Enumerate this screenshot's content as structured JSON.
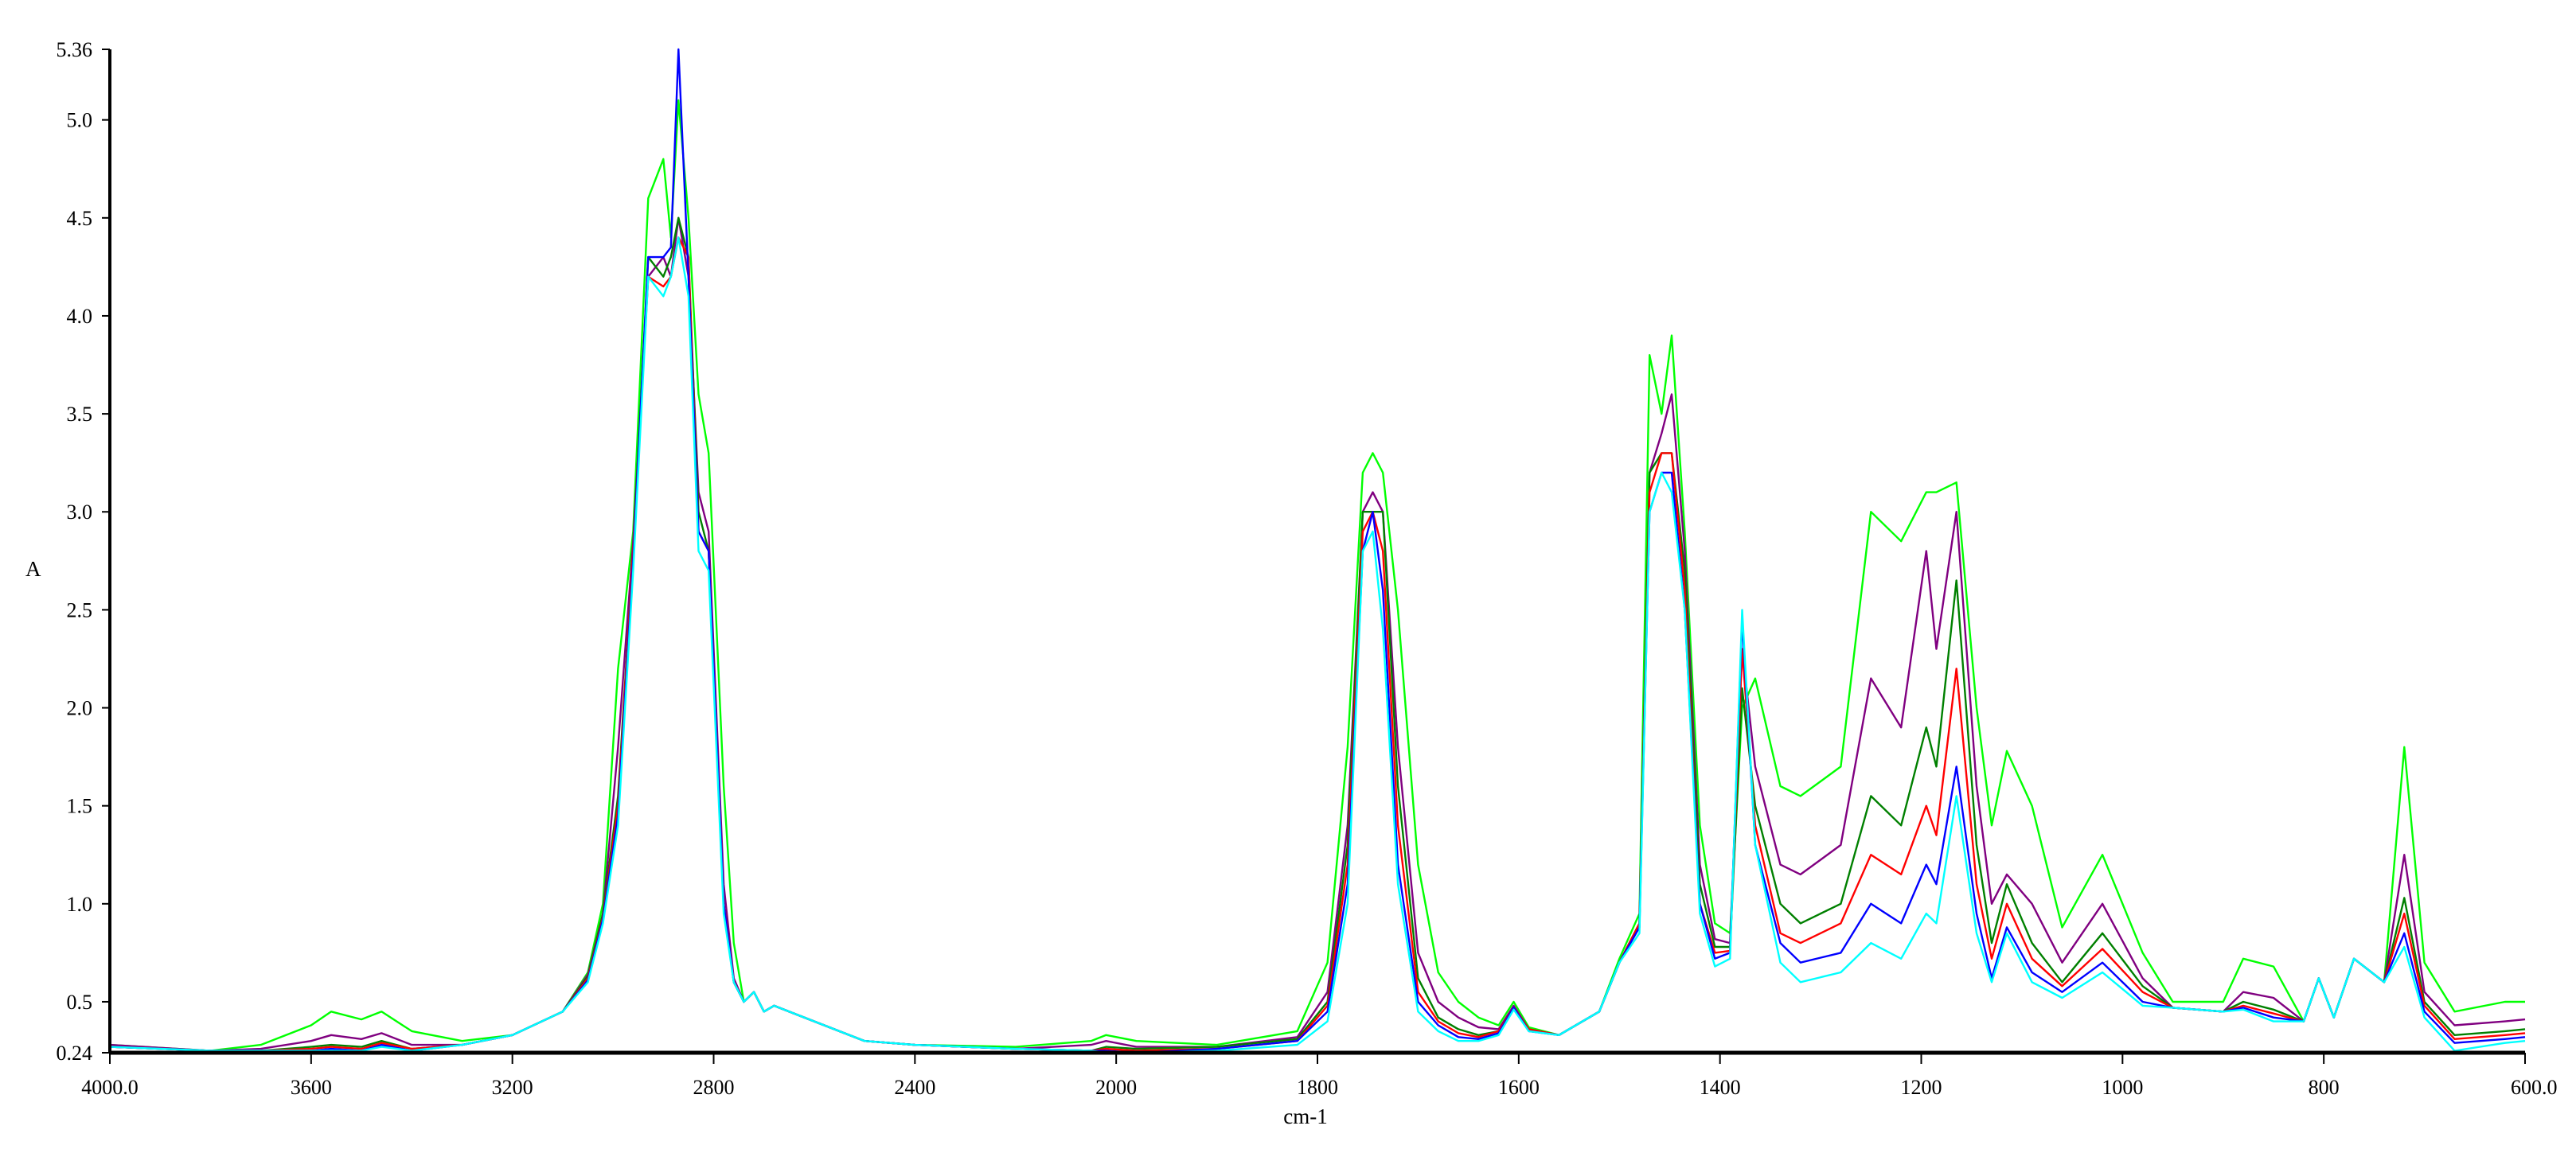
{
  "chart_data": {
    "type": "line",
    "title": "",
    "xlabel": "cm-1",
    "ylabel": "A",
    "xlim": [
      4000,
      600
    ],
    "x_axis_note": "reversed; scale doubles below 2000",
    "ylim": [
      0.24,
      5.36
    ],
    "grid": false,
    "legend": "none",
    "x_ticks": [
      "4000.0",
      "3600",
      "3200",
      "2800",
      "2400",
      "2000",
      "1800",
      "1600",
      "1400",
      "1200",
      "1000",
      "800",
      "600.0"
    ],
    "x_tick_values": [
      4000,
      3600,
      3200,
      2800,
      2400,
      2000,
      1800,
      1600,
      1400,
      1200,
      1000,
      800,
      600
    ],
    "y_ticks": [
      "0.24",
      "0.5",
      "1.0",
      "1.5",
      "2.0",
      "2.5",
      "3.0",
      "3.5",
      "4.0",
      "4.5",
      "5.0",
      "5.36"
    ],
    "y_tick_values": [
      0.24,
      0.5,
      1.0,
      1.5,
      2.0,
      2.5,
      3.0,
      3.5,
      4.0,
      4.5,
      5.0,
      5.36
    ],
    "x": [
      4000,
      3800,
      3700,
      3600,
      3560,
      3500,
      3460,
      3400,
      3300,
      3200,
      3100,
      3050,
      3020,
      2990,
      2960,
      2930,
      2900,
      2885,
      2870,
      2850,
      2830,
      2810,
      2780,
      2760,
      2740,
      2720,
      2700,
      2680,
      2600,
      2500,
      2400,
      2200,
      2050,
      2020,
      1980,
      1900,
      1820,
      1790,
      1770,
      1755,
      1745,
      1735,
      1720,
      1700,
      1680,
      1660,
      1640,
      1620,
      1605,
      1590,
      1560,
      1520,
      1500,
      1480,
      1470,
      1458,
      1448,
      1435,
      1420,
      1405,
      1390,
      1378,
      1365,
      1340,
      1320,
      1280,
      1250,
      1220,
      1195,
      1185,
      1165,
      1145,
      1130,
      1115,
      1090,
      1060,
      1020,
      980,
      950,
      900,
      880,
      850,
      820,
      805,
      790,
      770,
      740,
      720,
      700,
      670,
      620,
      600
    ],
    "series": [
      {
        "color": "#00ff00",
        "values": [
          0.28,
          0.25,
          0.28,
          0.38,
          0.45,
          0.41,
          0.45,
          0.35,
          0.3,
          0.33,
          0.45,
          0.65,
          1.0,
          2.2,
          2.9,
          4.6,
          4.8,
          4.4,
          5.1,
          4.5,
          3.6,
          3.3,
          1.6,
          0.8,
          0.5,
          0.55,
          0.45,
          0.48,
          0.4,
          0.3,
          0.28,
          0.27,
          0.3,
          0.33,
          0.3,
          0.28,
          0.35,
          0.7,
          1.8,
          3.2,
          3.3,
          3.2,
          2.5,
          1.2,
          0.65,
          0.5,
          0.42,
          0.38,
          0.5,
          0.37,
          0.33,
          0.45,
          0.72,
          0.95,
          3.8,
          3.5,
          3.9,
          2.9,
          1.4,
          0.9,
          0.85,
          2.0,
          2.15,
          1.6,
          1.55,
          1.7,
          3.0,
          2.85,
          3.1,
          3.1,
          3.15,
          2.0,
          1.4,
          1.78,
          1.5,
          0.88,
          1.25,
          0.75,
          0.5,
          0.5,
          0.72,
          0.68,
          0.4,
          0.62,
          0.42,
          0.72,
          0.6,
          1.8,
          0.7,
          0.45,
          0.5,
          0.5
        ]
      },
      {
        "color": "#800080",
        "values": [
          0.28,
          0.25,
          0.26,
          0.3,
          0.33,
          0.31,
          0.34,
          0.28,
          0.28,
          0.33,
          0.45,
          0.64,
          0.95,
          1.8,
          2.85,
          4.2,
          4.3,
          4.2,
          4.5,
          4.2,
          3.1,
          2.9,
          1.1,
          0.62,
          0.5,
          0.55,
          0.45,
          0.48,
          0.4,
          0.3,
          0.28,
          0.26,
          0.28,
          0.3,
          0.27,
          0.27,
          0.32,
          0.55,
          1.4,
          3.0,
          3.1,
          3.0,
          1.8,
          0.75,
          0.5,
          0.42,
          0.37,
          0.36,
          0.48,
          0.36,
          0.33,
          0.45,
          0.7,
          0.9,
          3.2,
          3.4,
          3.6,
          2.8,
          1.2,
          0.82,
          0.8,
          2.3,
          1.7,
          1.2,
          1.15,
          1.3,
          2.15,
          1.9,
          2.8,
          2.3,
          3.0,
          1.6,
          1.0,
          1.15,
          1.0,
          0.7,
          1.0,
          0.62,
          0.47,
          0.45,
          0.55,
          0.52,
          0.4,
          0.62,
          0.42,
          0.72,
          0.6,
          1.25,
          0.55,
          0.38,
          0.4,
          0.41
        ]
      },
      {
        "color": "#008000",
        "values": [
          0.27,
          0.25,
          0.25,
          0.27,
          0.28,
          0.27,
          0.3,
          0.26,
          0.28,
          0.33,
          0.45,
          0.63,
          0.95,
          1.55,
          2.8,
          4.3,
          4.2,
          4.3,
          4.5,
          4.3,
          3.0,
          2.8,
          1.0,
          0.6,
          0.5,
          0.55,
          0.45,
          0.48,
          0.4,
          0.3,
          0.28,
          0.26,
          0.25,
          0.27,
          0.26,
          0.27,
          0.31,
          0.5,
          1.3,
          3.0,
          3.0,
          3.0,
          1.6,
          0.62,
          0.42,
          0.36,
          0.33,
          0.35,
          0.47,
          0.36,
          0.33,
          0.45,
          0.7,
          0.9,
          3.2,
          3.3,
          3.3,
          2.7,
          1.1,
          0.78,
          0.78,
          2.1,
          1.5,
          1.0,
          0.9,
          1.0,
          1.55,
          1.4,
          1.9,
          1.7,
          2.65,
          1.3,
          0.8,
          1.1,
          0.8,
          0.6,
          0.85,
          0.58,
          0.47,
          0.45,
          0.5,
          0.46,
          0.4,
          0.62,
          0.42,
          0.72,
          0.6,
          1.03,
          0.5,
          0.33,
          0.35,
          0.36
        ]
      },
      {
        "color": "#ff0000",
        "values": [
          0.27,
          0.25,
          0.25,
          0.26,
          0.27,
          0.26,
          0.29,
          0.26,
          0.28,
          0.33,
          0.45,
          0.62,
          0.93,
          1.5,
          2.8,
          4.2,
          4.15,
          4.2,
          4.4,
          4.3,
          2.9,
          2.8,
          1.0,
          0.6,
          0.5,
          0.55,
          0.45,
          0.48,
          0.4,
          0.3,
          0.28,
          0.26,
          0.25,
          0.26,
          0.25,
          0.26,
          0.3,
          0.48,
          1.2,
          2.9,
          3.0,
          2.8,
          1.4,
          0.55,
          0.4,
          0.34,
          0.32,
          0.35,
          0.47,
          0.36,
          0.33,
          0.45,
          0.7,
          0.9,
          3.1,
          3.3,
          3.3,
          2.6,
          1.0,
          0.75,
          0.76,
          2.3,
          1.4,
          0.85,
          0.8,
          0.9,
          1.25,
          1.15,
          1.5,
          1.35,
          2.2,
          1.1,
          0.72,
          1.0,
          0.72,
          0.58,
          0.77,
          0.55,
          0.47,
          0.45,
          0.48,
          0.44,
          0.4,
          0.62,
          0.42,
          0.72,
          0.6,
          0.95,
          0.48,
          0.31,
          0.33,
          0.34
        ]
      },
      {
        "color": "#0000ff",
        "values": [
          0.27,
          0.25,
          0.25,
          0.25,
          0.26,
          0.25,
          0.28,
          0.25,
          0.28,
          0.33,
          0.45,
          0.61,
          0.92,
          1.45,
          2.75,
          4.3,
          4.3,
          4.35,
          5.36,
          4.2,
          2.9,
          2.8,
          1.0,
          0.6,
          0.5,
          0.55,
          0.45,
          0.48,
          0.4,
          0.3,
          0.28,
          0.26,
          0.25,
          0.25,
          0.24,
          0.26,
          0.3,
          0.45,
          1.1,
          2.8,
          3.0,
          2.6,
          1.2,
          0.5,
          0.38,
          0.32,
          0.31,
          0.34,
          0.47,
          0.35,
          0.33,
          0.45,
          0.7,
          0.88,
          3.0,
          3.2,
          3.2,
          2.5,
          1.0,
          0.72,
          0.75,
          2.45,
          1.3,
          0.8,
          0.7,
          0.75,
          1.0,
          0.9,
          1.2,
          1.1,
          1.7,
          0.95,
          0.62,
          0.88,
          0.65,
          0.55,
          0.7,
          0.5,
          0.47,
          0.45,
          0.47,
          0.42,
          0.4,
          0.62,
          0.42,
          0.72,
          0.6,
          0.85,
          0.45,
          0.29,
          0.31,
          0.32
        ]
      },
      {
        "color": "#00ffff",
        "values": [
          0.27,
          0.25,
          0.25,
          0.25,
          0.25,
          0.25,
          0.27,
          0.25,
          0.28,
          0.33,
          0.45,
          0.6,
          0.9,
          1.4,
          2.7,
          4.2,
          4.1,
          4.2,
          4.4,
          4.1,
          2.8,
          2.7,
          0.95,
          0.6,
          0.5,
          0.55,
          0.45,
          0.48,
          0.4,
          0.3,
          0.28,
          0.26,
          0.25,
          0.24,
          0.24,
          0.25,
          0.28,
          0.4,
          1.0,
          2.8,
          2.9,
          2.4,
          1.1,
          0.45,
          0.35,
          0.3,
          0.3,
          0.33,
          0.46,
          0.35,
          0.33,
          0.45,
          0.7,
          0.85,
          3.0,
          3.2,
          3.1,
          2.5,
          0.95,
          0.68,
          0.72,
          2.5,
          1.3,
          0.7,
          0.6,
          0.65,
          0.8,
          0.72,
          0.95,
          0.9,
          1.55,
          0.85,
          0.6,
          0.85,
          0.6,
          0.52,
          0.65,
          0.48,
          0.47,
          0.45,
          0.46,
          0.4,
          0.4,
          0.62,
          0.42,
          0.72,
          0.6,
          0.78,
          0.42,
          0.25,
          0.29,
          0.3
        ]
      }
    ]
  }
}
